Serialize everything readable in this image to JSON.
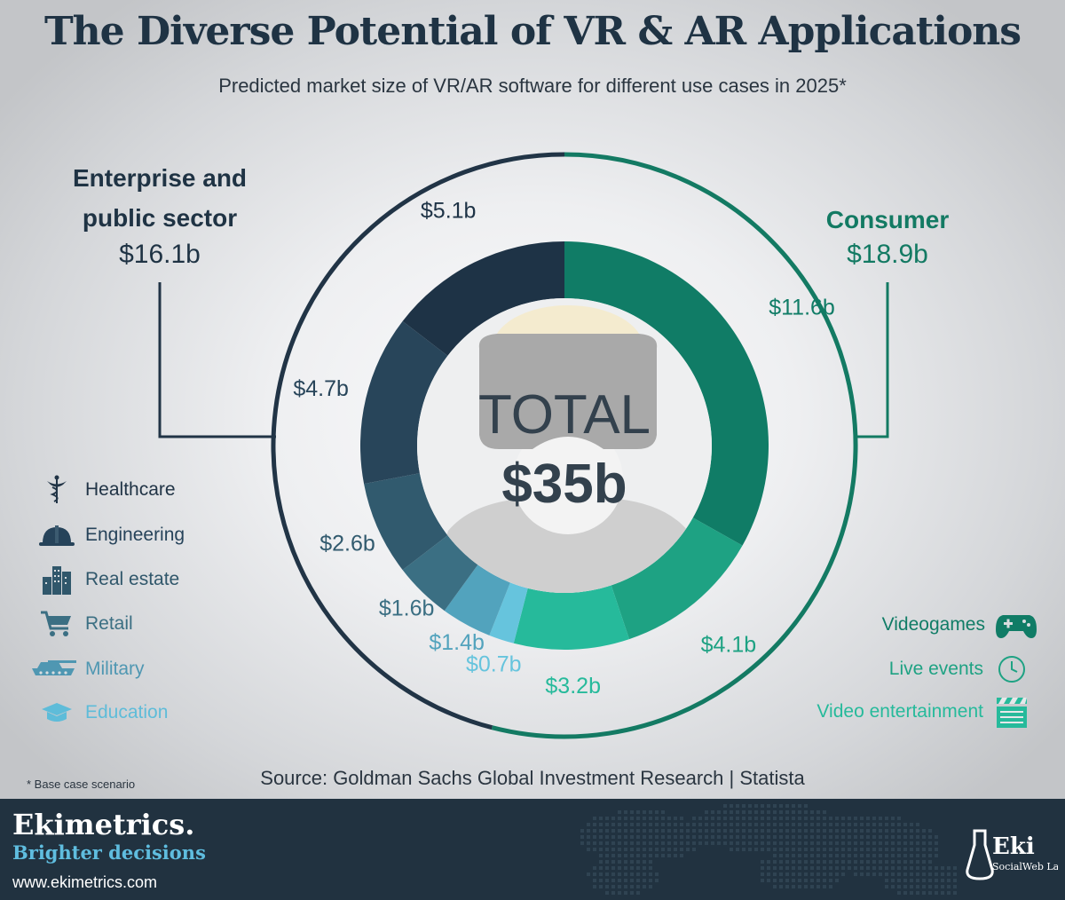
{
  "title": "The Diverse Potential of VR & AR Applications",
  "subtitle": "Predicted market size of VR/AR software for different use cases in 2025*",
  "groups": {
    "enterprise": {
      "label_line1": "Enterprise and",
      "label_line2": "public sector",
      "value": "$16.1b",
      "color": "#213446"
    },
    "consumer": {
      "label": "Consumer",
      "value": "$18.9b",
      "color": "#137a63"
    }
  },
  "center": {
    "line1": "TOTAL",
    "line2": "$35b"
  },
  "chart_data": {
    "type": "pie",
    "unit": "$b",
    "total": 35,
    "slices": [
      {
        "name": "Videogames",
        "value": 11.6,
        "label": "$11.6b",
        "color": "#107c66"
      },
      {
        "name": "Live events",
        "value": 4.1,
        "label": "$4.1b",
        "color": "#1ea283"
      },
      {
        "name": "Video entertainment",
        "value": 3.2,
        "label": "$3.2b",
        "color": "#26ba9b"
      },
      {
        "name": "Education",
        "value": 0.7,
        "label": "$0.7b",
        "color": "#66c4dd"
      },
      {
        "name": "Military",
        "value": 1.4,
        "label": "$1.4b",
        "color": "#52a3bd"
      },
      {
        "name": "Retail",
        "value": 1.6,
        "label": "$1.6b",
        "color": "#3b6f83"
      },
      {
        "name": "Real estate",
        "value": 2.6,
        "label": "$2.6b",
        "color": "#315a6e"
      },
      {
        "name": "Engineering",
        "value": 4.7,
        "label": "$4.7b",
        "color": "#28455a"
      },
      {
        "name": "Healthcare",
        "value": 5.1,
        "label": "$5.1b",
        "color": "#1e3346"
      }
    ]
  },
  "legend_enterprise": [
    {
      "label": "Healthcare",
      "icon": "caduceus-icon",
      "color": "#213446"
    },
    {
      "label": "Engineering",
      "icon": "hard-hat-icon",
      "color": "#26435a"
    },
    {
      "label": "Real estate",
      "icon": "buildings-icon",
      "color": "#30576b"
    },
    {
      "label": "Retail",
      "icon": "shopping-cart-icon",
      "color": "#3b6f83"
    },
    {
      "label": "Military",
      "icon": "tank-icon",
      "color": "#4f97b2"
    },
    {
      "label": "Education",
      "icon": "graduation-cap-icon",
      "color": "#5ebcd9"
    }
  ],
  "legend_consumer": [
    {
      "label": "Videogames",
      "icon": "gamepad-icon",
      "color": "#107c66"
    },
    {
      "label": "Live events",
      "icon": "clock-icon",
      "color": "#1ea283"
    },
    {
      "label": "Video entertainment",
      "icon": "clapperboard-icon",
      "color": "#26ba9b"
    }
  ],
  "footnote": "* Base case scenario",
  "source": "Source: Goldman Sachs Global Investment Research | Statista",
  "footer": {
    "brand": "Ekimetrics.",
    "tagline": "Brighter decisions",
    "website": "www.ekimetrics.com",
    "lab_name": "Eki",
    "lab_sub": "SocialWeb Lab"
  }
}
